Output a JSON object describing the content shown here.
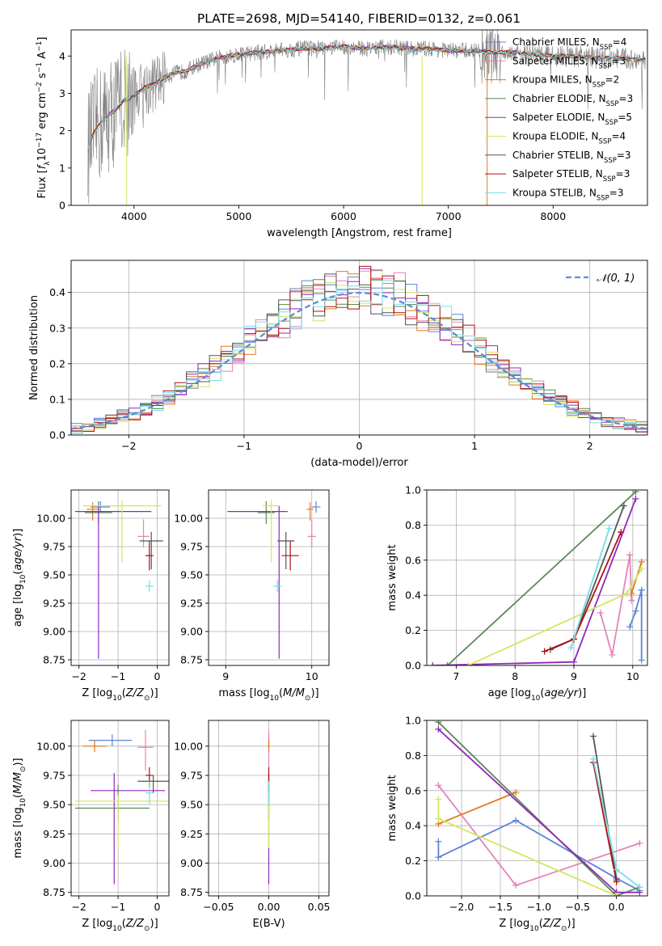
{
  "figure_title": "PLATE=2698, MJD=54140, FIBERID=0132, z=0.061",
  "colors": {
    "chabrier_miles": "#5b84d6",
    "salpeter_miles": "#e384b8",
    "kroupa_miles": "#e07b1f",
    "chabrier_elodie": "#5a8a55",
    "salpeter_elodie": "#9028b8",
    "kroupa_elodie": "#d2e660",
    "chabrier_stelib": "#555555",
    "salpeter_stelib": "#b01010",
    "kroupa_stelib": "#7adce6",
    "data": "#808080",
    "normal_fit": "#5b8fd6"
  },
  "chart_data": [
    {
      "id": "spectrum",
      "type": "line",
      "title": "PLATE=2698, MJD=54140, FIBERID=0132, z=0.061",
      "xlabel": "wavelength [Angstrom, rest frame]",
      "ylabel": "Flux [f_λ 10^-17 erg cm^-2 s^-1 A^-1]",
      "xlim": [
        3400,
        8900
      ],
      "ylim": [
        0,
        4.7
      ],
      "xticks": [
        4000,
        5000,
        6000,
        7000,
        8000
      ],
      "yticks": [
        0,
        1,
        2,
        3,
        4
      ],
      "grid": false,
      "legend_position": "top-right",
      "legend": [
        {
          "label": "Chabrier MILES, N",
          "sub": "SSP",
          "tail": "=4",
          "color": "#5b84d6"
        },
        {
          "label": "Salpeter MILES, N",
          "sub": "SSP",
          "tail": "=3",
          "color": "#e384b8"
        },
        {
          "label": "Kroupa MILES, N",
          "sub": "SSP",
          "tail": "=2",
          "color": "#e07b1f"
        },
        {
          "label": "Chabrier ELODIE, N",
          "sub": "SSP",
          "tail": "=3",
          "color": "#5a8a55"
        },
        {
          "label": "Salpeter ELODIE, N",
          "sub": "SSP",
          "tail": "=5",
          "color": "#9028b8"
        },
        {
          "label": "Kroupa ELODIE, N",
          "sub": "SSP",
          "tail": "=4",
          "color": "#d2e660"
        },
        {
          "label": "Chabrier STELIB, N",
          "sub": "SSP",
          "tail": "=3",
          "color": "#555555"
        },
        {
          "label": "Salpeter STELIB, N",
          "sub": "SSP",
          "tail": "=3",
          "color": "#b01010"
        },
        {
          "label": "Kroupa STELIB, N",
          "sub": "SSP",
          "tail": "=3",
          "color": "#7adce6"
        }
      ],
      "model_curve": {
        "x": [
          3560,
          3600,
          3650,
          3700,
          3750,
          3800,
          3850,
          3900,
          3950,
          4000,
          4100,
          4200,
          4300,
          4400,
          4500,
          4600,
          4700,
          4800,
          4900,
          5000,
          5200,
          5400,
          5600,
          5800,
          6000,
          6200,
          6400,
          6600,
          6800,
          7000,
          7200,
          7400,
          7600,
          7800,
          8000,
          8200,
          8400,
          8600,
          8800
        ],
        "y": [
          1.55,
          1.85,
          2.1,
          2.25,
          2.4,
          2.5,
          2.65,
          2.8,
          2.85,
          2.95,
          3.15,
          3.25,
          3.45,
          3.55,
          3.6,
          3.75,
          3.85,
          3.95,
          4.0,
          4.05,
          4.1,
          4.15,
          4.2,
          4.2,
          4.25,
          4.2,
          4.25,
          4.2,
          4.2,
          4.15,
          4.15,
          4.1,
          4.1,
          4.05,
          4.0,
          4.0,
          3.95,
          3.95,
          3.9
        ]
      }
    },
    {
      "id": "residuals",
      "type": "bar",
      "xlabel": "(data-model)/error",
      "ylabel": "Normed distribution",
      "xlim": [
        -2.5,
        2.5
      ],
      "ylim": [
        0,
        0.49
      ],
      "xticks": [
        -2,
        -1,
        0,
        1,
        2
      ],
      "yticks": [
        0.0,
        0.1,
        0.2,
        0.3,
        0.4
      ],
      "grid": true,
      "bin_width": 0.1,
      "legend_position": "top-right",
      "legend": [
        {
          "label": "𝒩(0, 1)",
          "color": "#5b8fd6",
          "style": "dashed"
        }
      ]
    },
    {
      "id": "age_vs_Z",
      "type": "scatter",
      "xlabel": "Z [log10(Z/Z⊙)]",
      "ylabel": "age [log10(age/yr)]",
      "xlim": [
        -2.2,
        0.3
      ],
      "ylim": [
        8.7,
        10.25
      ],
      "xticks": [
        -2,
        -1,
        0
      ],
      "yticks": [
        8.75,
        9.0,
        9.25,
        9.5,
        9.75,
        10.0
      ],
      "grid": true,
      "series": [
        {
          "model": "chabrier_miles",
          "x": -1.45,
          "y": 10.1,
          "xerr": [
            0.25,
            0.25
          ],
          "yerr": [
            0.05,
            0.05
          ]
        },
        {
          "model": "salpeter_miles",
          "x": -0.35,
          "y": 9.84,
          "xerr": [
            0.15,
            0.15
          ],
          "yerr": [
            0.1,
            0.15
          ]
        },
        {
          "model": "kroupa_miles",
          "x": -1.65,
          "y": 10.08,
          "xerr": [
            0.15,
            0.15
          ],
          "yerr": [
            0.1,
            0.06
          ]
        },
        {
          "model": "chabrier_elodie",
          "x": -1.5,
          "y": 10.05,
          "xerr": [
            0.35,
            0.35
          ],
          "yerr": [
            0.1,
            0.1
          ]
        },
        {
          "model": "salpeter_elodie",
          "x": -1.5,
          "y": 10.06,
          "xerr": [
            0.6,
            1.35
          ],
          "yerr": [
            1.3,
            0.05
          ]
        },
        {
          "model": "kroupa_elodie",
          "x": -0.9,
          "y": 10.11,
          "xerr": [
            1.0,
            1.0
          ],
          "yerr": [
            0.5,
            0.05
          ]
        },
        {
          "model": "chabrier_stelib",
          "x": -0.15,
          "y": 9.8,
          "xerr": [
            0.3,
            0.3
          ],
          "yerr": [
            0.25,
            0.08
          ]
        },
        {
          "model": "salpeter_stelib",
          "x": -0.2,
          "y": 9.67,
          "xerr": [
            0.1,
            0.1
          ],
          "yerr": [
            0.13,
            0.13
          ]
        },
        {
          "model": "kroupa_stelib",
          "x": -0.2,
          "y": 9.4,
          "xerr": [
            0.1,
            0.1
          ],
          "yerr": [
            0.05,
            0.05
          ]
        }
      ]
    },
    {
      "id": "age_vs_mass",
      "type": "scatter",
      "xlabel": "mass [log10(M/M⊙)]",
      "ylabel": "",
      "xlim": [
        8.8,
        10.2
      ],
      "ylim": [
        8.7,
        10.25
      ],
      "xticks": [
        9,
        10
      ],
      "yticks": [
        8.75,
        9.0,
        9.25,
        9.5,
        9.75,
        10.0
      ],
      "grid": true,
      "series": [
        {
          "model": "chabrier_miles",
          "x": 10.05,
          "y": 10.1,
          "xerr": [
            0.05,
            0.05
          ],
          "yerr": [
            0.05,
            0.05
          ]
        },
        {
          "model": "salpeter_miles",
          "x": 10.0,
          "y": 9.84,
          "xerr": [
            0.05,
            0.05
          ],
          "yerr": [
            0.1,
            0.15
          ]
        },
        {
          "model": "kroupa_miles",
          "x": 9.98,
          "y": 10.08,
          "xerr": [
            0.04,
            0.04
          ],
          "yerr": [
            0.1,
            0.06
          ]
        },
        {
          "model": "chabrier_elodie",
          "x": 9.47,
          "y": 10.05,
          "xerr": [
            0.1,
            0.1
          ],
          "yerr": [
            0.1,
            0.1
          ]
        },
        {
          "model": "salpeter_elodie",
          "x": 9.62,
          "y": 10.06,
          "xerr": [
            0.6,
            0.1
          ],
          "yerr": [
            1.3,
            0.05
          ]
        },
        {
          "model": "kroupa_elodie",
          "x": 9.53,
          "y": 10.11,
          "xerr": [
            0.1,
            0.1
          ],
          "yerr": [
            0.5,
            0.05
          ]
        },
        {
          "model": "chabrier_stelib",
          "x": 9.7,
          "y": 9.8,
          "xerr": [
            0.1,
            0.1
          ],
          "yerr": [
            0.25,
            0.08
          ]
        },
        {
          "model": "salpeter_stelib",
          "x": 9.75,
          "y": 9.67,
          "xerr": [
            0.1,
            0.1
          ],
          "yerr": [
            0.13,
            0.13
          ]
        },
        {
          "model": "kroupa_stelib",
          "x": 9.6,
          "y": 9.4,
          "xerr": [
            0.05,
            0.05
          ],
          "yerr": [
            0.05,
            0.05
          ]
        }
      ]
    },
    {
      "id": "weight_vs_age",
      "type": "line",
      "xlabel": "age [log10(age/yr)]",
      "ylabel": "mass weight",
      "xlim": [
        6.5,
        10.25
      ],
      "ylim": [
        0,
        1
      ],
      "xticks": [
        7,
        8,
        9,
        10
      ],
      "yticks": [
        0.0,
        0.2,
        0.4,
        0.6,
        0.8,
        1.0
      ],
      "grid": true,
      "series": [
        {
          "model": "chabrier_miles",
          "x": [
            9.95,
            10.05,
            10.15,
            10.15
          ],
          "y": [
            0.22,
            0.31,
            0.43,
            0.03
          ]
        },
        {
          "model": "salpeter_miles",
          "x": [
            9.45,
            9.65,
            9.95,
            9.98
          ],
          "y": [
            0.3,
            0.06,
            0.63,
            0.37
          ]
        },
        {
          "model": "kroupa_miles",
          "x": [
            9.98,
            10.15
          ],
          "y": [
            0.41,
            0.59
          ]
        },
        {
          "model": "chabrier_elodie",
          "x": [
            6.85,
            10.05
          ],
          "y": [
            0.0,
            0.99
          ]
        },
        {
          "model": "salpeter_elodie",
          "x": [
            6.6,
            9.0,
            10.05
          ],
          "y": [
            0.0,
            0.02,
            0.95
          ]
        },
        {
          "model": "kroupa_elodie",
          "x": [
            7.2,
            9.9,
            10.15
          ],
          "y": [
            0.0,
            0.41,
            0.55
          ]
        },
        {
          "model": "chabrier_stelib",
          "x": [
            8.6,
            9.0,
            9.85
          ],
          "y": [
            0.09,
            0.15,
            0.91
          ]
        },
        {
          "model": "salpeter_stelib",
          "x": [
            8.5,
            9.0,
            9.8
          ],
          "y": [
            0.08,
            0.15,
            0.76
          ]
        },
        {
          "model": "kroupa_stelib",
          "x": [
            8.95,
            9.6
          ],
          "y": [
            0.1,
            0.78
          ]
        }
      ]
    },
    {
      "id": "mass_vs_Z",
      "type": "scatter",
      "xlabel": "Z [log10(Z/Z⊙)]",
      "ylabel": "mass [log10(M/M⊙)]",
      "xlim": [
        -2.2,
        0.3
      ],
      "ylim": [
        8.72,
        10.22
      ],
      "xticks": [
        -2,
        -1,
        0
      ],
      "yticks": [
        8.75,
        9.0,
        9.25,
        9.5,
        9.75,
        10.0
      ],
      "grid": true,
      "series": [
        {
          "model": "chabrier_miles",
          "x": -1.15,
          "y": 10.05,
          "xerr": [
            0.6,
            0.5
          ],
          "yerr": [
            0.05,
            0.05
          ]
        },
        {
          "model": "salpeter_miles",
          "x": -0.3,
          "y": 9.99,
          "xerr": [
            0.2,
            0.2
          ],
          "yerr": [
            0.2,
            0.15
          ]
        },
        {
          "model": "kroupa_miles",
          "x": -1.6,
          "y": 10.0,
          "xerr": [
            0.3,
            0.3
          ],
          "yerr": [
            0.05,
            0.05
          ]
        },
        {
          "model": "chabrier_elodie",
          "x": -1.0,
          "y": 9.47,
          "xerr": [
            1.1,
            0.8
          ],
          "yerr": [
            0.1,
            0.2
          ]
        },
        {
          "model": "salpeter_elodie",
          "x": -1.1,
          "y": 9.62,
          "xerr": [
            0.6,
            1.3
          ],
          "yerr": [
            0.8,
            0.15
          ]
        },
        {
          "model": "kroupa_elodie",
          "x": -1.0,
          "y": 9.53,
          "xerr": [
            1.1,
            1.3
          ],
          "yerr": [
            0.4,
            0.05
          ]
        },
        {
          "model": "chabrier_stelib",
          "x": -0.1,
          "y": 9.7,
          "xerr": [
            0.4,
            0.4
          ],
          "yerr": [
            0.1,
            0.05
          ]
        },
        {
          "model": "salpeter_stelib",
          "x": -0.2,
          "y": 9.75,
          "xerr": [
            0.1,
            0.1
          ],
          "yerr": [
            0.1,
            0.07
          ]
        },
        {
          "model": "kroupa_stelib",
          "x": -0.2,
          "y": 9.6,
          "xerr": [
            0.1,
            0.1
          ],
          "yerr": [
            0.1,
            0.1
          ]
        }
      ]
    },
    {
      "id": "mass_vs_ebv",
      "type": "scatter",
      "xlabel": "E(B-V)",
      "ylabel": "",
      "xlim": [
        -0.06,
        0.06
      ],
      "ylim": [
        8.72,
        10.22
      ],
      "xticks": [
        -0.05,
        0.0,
        0.05
      ],
      "xtick_labels": [
        "−0.05",
        "0.00",
        "0.05"
      ],
      "yticks": [
        8.75,
        9.0,
        9.25,
        9.5,
        9.75,
        10.0
      ],
      "grid": true,
      "series": [
        {
          "model": "chabrier_miles",
          "x": 0.0,
          "y": 10.05,
          "xerr": [
            0,
            0
          ],
          "yerr": [
            0.05,
            0.05
          ]
        },
        {
          "model": "salpeter_miles",
          "x": 0.0,
          "y": 9.99,
          "xerr": [
            0,
            0
          ],
          "yerr": [
            0.2,
            0.15
          ]
        },
        {
          "model": "kroupa_miles",
          "x": 0.0,
          "y": 10.0,
          "xerr": [
            0,
            0
          ],
          "yerr": [
            0.05,
            0.05
          ]
        },
        {
          "model": "chabrier_elodie",
          "x": 0.0,
          "y": 9.47,
          "xerr": [
            0,
            0
          ],
          "yerr": [
            0.1,
            0.2
          ]
        },
        {
          "model": "salpeter_elodie",
          "x": 0.0,
          "y": 9.62,
          "xerr": [
            0,
            0
          ],
          "yerr": [
            0.8,
            0.15
          ]
        },
        {
          "model": "kroupa_elodie",
          "x": 0.0,
          "y": 9.53,
          "xerr": [
            0,
            0
          ],
          "yerr": [
            0.4,
            0.05
          ]
        },
        {
          "model": "chabrier_stelib",
          "x": 0.0,
          "y": 9.7,
          "xerr": [
            0,
            0
          ],
          "yerr": [
            0.1,
            0.05
          ]
        },
        {
          "model": "salpeter_stelib",
          "x": 0.0,
          "y": 9.75,
          "xerr": [
            0,
            0
          ],
          "yerr": [
            0.1,
            0.07
          ]
        },
        {
          "model": "kroupa_stelib",
          "x": 0.0,
          "y": 9.6,
          "xerr": [
            0,
            0
          ],
          "yerr": [
            0.1,
            0.1
          ]
        }
      ]
    },
    {
      "id": "weight_vs_Z",
      "type": "line",
      "xlabel": "Z [log10(Z/Z⊙)]",
      "ylabel": "mass weight",
      "xlim": [
        -2.45,
        0.4
      ],
      "ylim": [
        0,
        1
      ],
      "xticks": [
        -2.0,
        -1.5,
        -1.0,
        -0.5,
        0.0
      ],
      "xtick_labels": [
        "−2.0",
        "−1.5",
        "−1.0",
        "−0.5",
        "0.0"
      ],
      "yticks": [
        0.0,
        0.2,
        0.4,
        0.6,
        0.8,
        1.0
      ],
      "grid": true,
      "series": [
        {
          "model": "chabrier_miles",
          "x": [
            -2.3,
            -2.3,
            -1.3,
            0.0,
            0.3
          ],
          "y": [
            0.31,
            0.22,
            0.43,
            0.1,
            0.03
          ]
        },
        {
          "model": "salpeter_miles",
          "x": [
            -2.3,
            -1.3,
            0.3
          ],
          "y": [
            0.63,
            0.06,
            0.3
          ]
        },
        {
          "model": "kroupa_miles",
          "x": [
            -2.3,
            -1.3
          ],
          "y": [
            0.41,
            0.59
          ]
        },
        {
          "model": "chabrier_elodie",
          "x": [
            -2.3,
            0.0,
            0.3
          ],
          "y": [
            0.99,
            0.0,
            0.05
          ]
        },
        {
          "model": "salpeter_elodie",
          "x": [
            -2.3,
            0.0,
            0.3
          ],
          "y": [
            0.95,
            0.02,
            0.02
          ]
        },
        {
          "model": "kroupa_elodie",
          "x": [
            -2.3,
            -2.3,
            0.0
          ],
          "y": [
            0.55,
            0.44,
            0.0
          ]
        },
        {
          "model": "chabrier_stelib",
          "x": [
            -0.3,
            0.0
          ],
          "y": [
            0.91,
            0.09
          ]
        },
        {
          "model": "salpeter_stelib",
          "x": [
            -0.3,
            0.0
          ],
          "y": [
            0.76,
            0.08
          ]
        },
        {
          "model": "kroupa_stelib",
          "x": [
            -0.3,
            0.0,
            0.3
          ],
          "y": [
            0.78,
            0.15,
            0.05
          ]
        }
      ]
    }
  ]
}
